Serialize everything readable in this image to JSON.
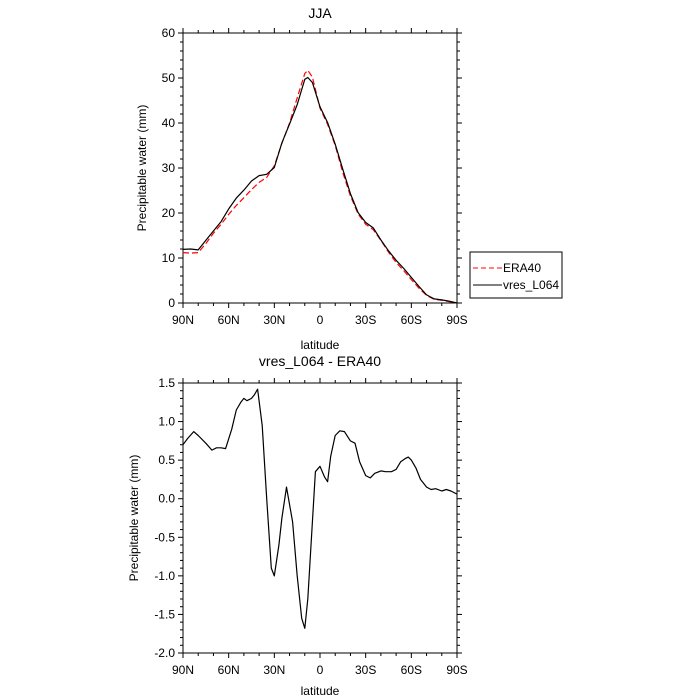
{
  "chart_data": [
    {
      "type": "line",
      "title": "JJA",
      "xlabel": "latitude",
      "ylabel": "Precipitable water (mm)",
      "xlim": [
        90,
        -90
      ],
      "ylim": [
        0,
        60
      ],
      "yticks": [
        0,
        10,
        20,
        30,
        40,
        50,
        60
      ],
      "xticks": [
        90,
        60,
        30,
        0,
        -30,
        -60,
        -90
      ],
      "xtick_labels": [
        "90N",
        "60N",
        "30N",
        "0",
        "30S",
        "60S",
        "90S"
      ],
      "grid": false,
      "legend": "right, outside plot",
      "series": [
        {
          "name": "ERA40",
          "color": "#ff0000",
          "dash": "dashed",
          "x": [
            90,
            85,
            80,
            75,
            70,
            65,
            60,
            55,
            50,
            45,
            40,
            35,
            30,
            25,
            20,
            15,
            10,
            8,
            5,
            0,
            -5,
            -10,
            -15,
            -20,
            -25,
            -30,
            -35,
            -40,
            -45,
            -50,
            -55,
            -60,
            -65,
            -70,
            -75,
            -80,
            -85,
            -90
          ],
          "y": [
            11.2,
            11.1,
            11.2,
            13.2,
            15.5,
            17.5,
            19.7,
            21.7,
            23.4,
            25.2,
            26.8,
            27.9,
            30.5,
            35.5,
            40.0,
            45.6,
            51.0,
            51.7,
            50.2,
            43.3,
            39.7,
            35.0,
            29.0,
            23.8,
            19.8,
            17.5,
            16.3,
            13.9,
            11.3,
            9.0,
            7.2,
            5.2,
            3.3,
            1.7,
            0.8,
            0.6,
            0.3,
            0.0
          ]
        },
        {
          "name": "vres_L064",
          "color": "#000000",
          "dash": "solid",
          "x": [
            90,
            85,
            80,
            75,
            70,
            65,
            60,
            55,
            50,
            45,
            40,
            35,
            30,
            25,
            20,
            15,
            10,
            8,
            5,
            0,
            -5,
            -10,
            -15,
            -20,
            -25,
            -30,
            -35,
            -40,
            -45,
            -50,
            -55,
            -60,
            -65,
            -70,
            -75,
            -80,
            -85,
            -90
          ],
          "y": [
            11.9,
            12.0,
            11.8,
            13.9,
            16.0,
            18.1,
            20.9,
            23.3,
            25.1,
            27.1,
            28.3,
            28.6,
            30.1,
            35.6,
            39.8,
            44.1,
            49.7,
            50.1,
            49.0,
            43.6,
            40.1,
            35.3,
            29.7,
            24.3,
            20.1,
            17.9,
            16.7,
            14.0,
            11.6,
            9.5,
            7.7,
            5.7,
            3.7,
            1.8,
            0.9,
            0.7,
            0.4,
            0.0
          ]
        }
      ]
    },
    {
      "type": "line",
      "title": "vres_L064 - ERA40",
      "xlabel": "latitude",
      "ylabel": "Precipitable water (mm)",
      "xlim": [
        90,
        -90
      ],
      "ylim": [
        -2.0,
        1.5
      ],
      "yticks": [
        -2.0,
        -1.5,
        -1.0,
        -0.5,
        0.0,
        0.5,
        1.0,
        1.5
      ],
      "ytick_labels": [
        "-2.0",
        "-1.5",
        "-1.0",
        "-0.5",
        "0.0",
        "0.5",
        "1.0",
        "1.5"
      ],
      "xticks": [
        90,
        60,
        30,
        0,
        -30,
        -60,
        -90
      ],
      "xtick_labels": [
        "90N",
        "60N",
        "30N",
        "0",
        "30S",
        "60S",
        "90S"
      ],
      "grid": false,
      "series": [
        {
          "color": "#000000",
          "dash": "solid",
          "x": [
            90,
            87,
            83,
            80,
            75,
            71,
            68,
            65,
            62,
            58,
            55,
            52,
            50,
            48,
            45,
            43,
            41,
            38,
            35,
            32,
            30,
            27,
            25,
            22,
            18,
            15,
            12,
            10,
            8,
            5,
            3,
            0,
            -3,
            -5,
            -7,
            -10,
            -13,
            -16,
            -20,
            -23,
            -26,
            -30,
            -33,
            -36,
            -40,
            -43,
            -47,
            -50,
            -53,
            -56,
            -58,
            -60,
            -63,
            -66,
            -70,
            -73,
            -76,
            -80,
            -83,
            -86,
            -90
          ],
          "y": [
            0.7,
            0.78,
            0.87,
            0.82,
            0.72,
            0.63,
            0.66,
            0.66,
            0.65,
            0.9,
            1.15,
            1.25,
            1.3,
            1.27,
            1.3,
            1.35,
            1.42,
            0.95,
            0.0,
            -0.9,
            -1.0,
            -0.6,
            -0.25,
            0.15,
            -0.3,
            -1.0,
            -1.55,
            -1.68,
            -1.3,
            -0.3,
            0.35,
            0.42,
            0.28,
            0.22,
            0.55,
            0.82,
            0.88,
            0.87,
            0.75,
            0.72,
            0.48,
            0.3,
            0.27,
            0.33,
            0.36,
            0.35,
            0.35,
            0.38,
            0.48,
            0.52,
            0.54,
            0.5,
            0.4,
            0.25,
            0.15,
            0.12,
            0.13,
            0.1,
            0.12,
            0.1,
            0.06
          ]
        }
      ]
    }
  ]
}
